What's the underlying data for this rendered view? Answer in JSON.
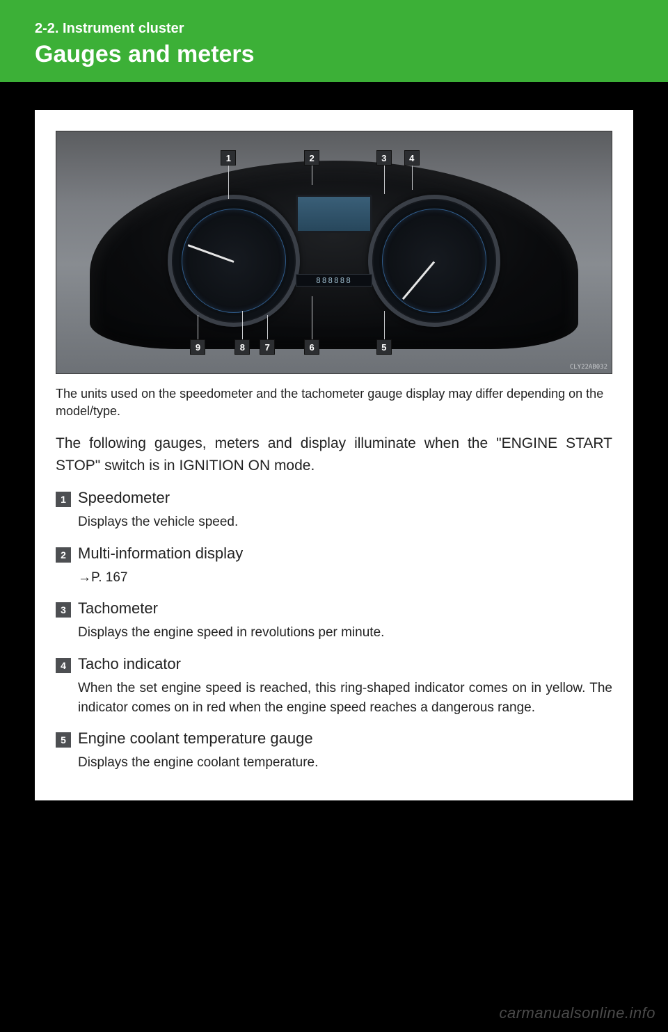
{
  "header": {
    "section": "2-2. Instrument cluster",
    "title": "Gauges and meters"
  },
  "figure": {
    "odo": "888888",
    "callouts_top": [
      {
        "n": "1",
        "left_pct": 31,
        "line_top_pct": 14,
        "line_height_pct": 14
      },
      {
        "n": "2",
        "left_pct": 46,
        "line_top_pct": 14,
        "line_height_pct": 8
      },
      {
        "n": "3",
        "left_pct": 59,
        "line_top_pct": 14,
        "line_height_pct": 12
      },
      {
        "n": "4",
        "left_pct": 64,
        "line_top_pct": 14,
        "line_height_pct": 10
      }
    ],
    "callouts_bottom": [
      {
        "n": "9",
        "left_pct": 25.5,
        "line_bottom_pct": 14,
        "line_height_pct": 10
      },
      {
        "n": "8",
        "left_pct": 33.5,
        "line_bottom_pct": 14,
        "line_height_pct": 12
      },
      {
        "n": "7",
        "left_pct": 38,
        "line_bottom_pct": 14,
        "line_height_pct": 10
      },
      {
        "n": "6",
        "left_pct": 46,
        "line_bottom_pct": 14,
        "line_height_pct": 18
      },
      {
        "n": "5",
        "left_pct": 59,
        "line_bottom_pct": 14,
        "line_height_pct": 12
      }
    ],
    "code": "CLY22AB032",
    "needle_left_deg": 200,
    "needle_right_deg": 130
  },
  "caption": "The units used on the speedometer and the tachometer gauge display may differ depending on the model/type.",
  "intro": "The following gauges, meters and display illuminate when the \"ENGINE START STOP\" switch is in IGNITION ON mode.",
  "items": [
    {
      "n": "1",
      "title": "Speedometer",
      "desc": "Displays the vehicle speed."
    },
    {
      "n": "2",
      "title": "Multi-information display",
      "desc": "→P. 167"
    },
    {
      "n": "3",
      "title": "Tachometer",
      "desc": "Displays the engine speed in revolutions per minute."
    },
    {
      "n": "4",
      "title": "Tacho indicator",
      "desc": "When the set engine speed is reached, this ring-shaped indicator comes on in yellow. The indicator comes on in red when the engine speed reaches a dangerous range."
    },
    {
      "n": "5",
      "title": "Engine coolant temperature gauge",
      "desc": "Displays the engine coolant temperature."
    }
  ],
  "watermark": "carmanualsonline.info",
  "colors": {
    "page_bg": "#000000",
    "header_bg": "#3cb037",
    "header_fg": "#ffffff",
    "card_bg": "#ffffff",
    "text": "#222222",
    "badge_bg": "#4d4f52"
  }
}
